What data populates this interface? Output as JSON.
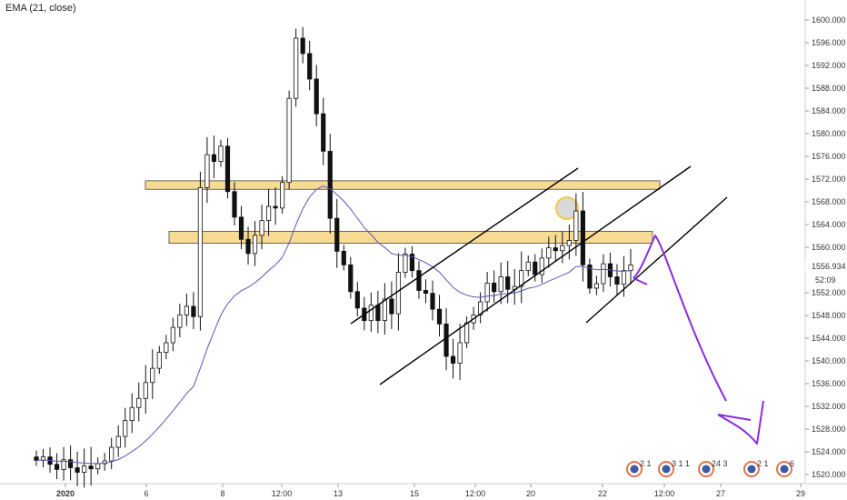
{
  "indicator_label": "EMA (21, close)",
  "colors": {
    "candle": "#111111",
    "ema": "#5b55b8",
    "zone_fill": "#f7d580",
    "zone_stroke": "#444444",
    "projection": "#8a2be2",
    "highlight": "#c9c9c9",
    "axis_text": "#333333",
    "badge": "#e5734a"
  },
  "chart_data": {
    "type": "candlestick",
    "title": "",
    "xlabel": "",
    "ylabel": "",
    "ylim": [
      1519,
      1603
    ],
    "yticks": [
      "1600.000",
      "1596.000",
      "1592.000",
      "1588.000",
      "1584.000",
      "1580.000",
      "1576.000",
      "1572.000",
      "1568.000",
      "1564.000",
      "1560.000",
      "1552.000",
      "1548.000",
      "1544.000",
      "1540.000",
      "1536.000",
      "1532.000",
      "1528.000",
      "1524.000",
      "1520.000"
    ],
    "ytick_values": [
      1600,
      1596,
      1592,
      1588,
      1584,
      1580,
      1576,
      1572,
      1568,
      1564,
      1560,
      1552,
      1548,
      1544,
      1540,
      1536,
      1532,
      1528,
      1524,
      1520
    ],
    "xticks": [
      "2020",
      "6",
      "8",
      "12:00",
      "13",
      "15",
      "12:00",
      "20",
      "22",
      "12:00",
      "27",
      "29"
    ],
    "price_label": "1556.934",
    "countdown_label": "52:09",
    "resistance_zones": [
      {
        "name": "upper-supply-zone",
        "low": 1570.2,
        "high": 1571.7
      },
      {
        "name": "lower-supply-zone",
        "low": 1560.7,
        "high": 1562.8
      }
    ],
    "close_series": [
      1522.5,
      1523.1,
      1521.8,
      1520.9,
      1522.6,
      1521.2,
      1520.4,
      1521.5,
      1521.0,
      1521.9,
      1522.4,
      1524.8,
      1526.7,
      1529.5,
      1531.8,
      1533.4,
      1536.2,
      1538.7,
      1541.5,
      1543.2,
      1545.9,
      1548.1,
      1549.6,
      1547.8,
      1570.5,
      1576.3,
      1575.1,
      1577.8,
      1569.8,
      1565.3,
      1561.4,
      1558.9,
      1562.1,
      1564.7,
      1567.2,
      1566.9,
      1571.4,
      1586.2,
      1596.8,
      1594.1,
      1589.6,
      1583.5,
      1576.9,
      1565.1,
      1559.3,
      1556.9,
      1552.2,
      1549.3,
      1547.1,
      1549.8,
      1547.1,
      1550.9,
      1548.3,
      1555.6,
      1558.8,
      1555.9,
      1552.4,
      1551.9,
      1549.1,
      1546.5,
      1540.8,
      1539.6,
      1543.2,
      1546.7,
      1548.1,
      1550.4,
      1553.7,
      1552.2,
      1554.8,
      1552.6,
      1553.1,
      1555.9,
      1557.4,
      1555.2,
      1558.1,
      1559.9,
      1559.4,
      1560.3,
      1561.2,
      1566.4,
      1556.9,
      1552.8,
      1553.6,
      1557.1,
      1554.8,
      1553.5,
      1555.9,
      1556.9
    ]
  },
  "badges": [
    {
      "label": "2 1"
    },
    {
      "label": "3 1 1"
    },
    {
      "label": "24 3"
    },
    {
      "label": "2 1"
    },
    {
      "label": "6"
    }
  ]
}
